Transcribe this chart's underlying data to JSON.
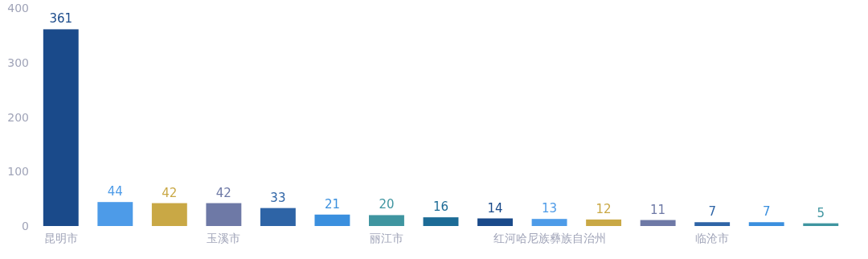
{
  "chart_data": {
    "type": "bar",
    "categories": [
      "昆明市",
      null,
      null,
      "玉溪市",
      null,
      null,
      "丽江市",
      null,
      null,
      "红河哈尼族彝族自治州",
      null,
      null,
      "临沧市",
      null,
      null
    ],
    "values": [
      361,
      44,
      42,
      42,
      33,
      21,
      20,
      16,
      14,
      13,
      12,
      11,
      7,
      7,
      5
    ],
    "colors": [
      "#1a4a8a",
      "#4d9be8",
      "#c9a845",
      "#6e79a6",
      "#2e64a6",
      "#3a8fde",
      "#3f95a0",
      "#1c6b96",
      "#1a4a8a",
      "#4d9be8",
      "#c9a845",
      "#6e79a6",
      "#2e64a6",
      "#3a8fde",
      "#3f95a0"
    ],
    "ylim": [
      0,
      400
    ],
    "yticks": [
      0,
      100,
      200,
      300,
      400
    ],
    "grid": false,
    "data_labels": true
  }
}
